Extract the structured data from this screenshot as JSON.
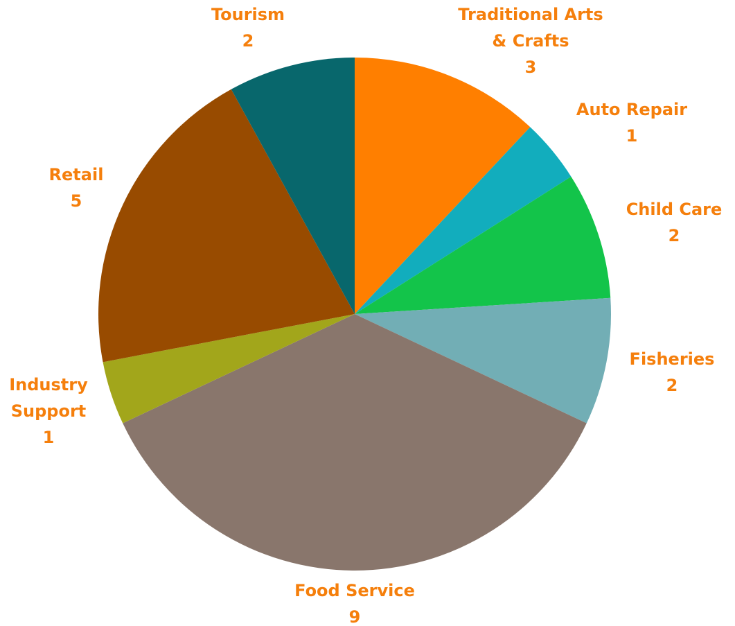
{
  "chart_data": {
    "type": "pie",
    "categories": [
      "Traditional Arts & Crafts",
      "Auto Repair",
      "Child Care",
      "Fisheries",
      "Food Service",
      "Industry Support",
      "Retail",
      "Tourism"
    ],
    "values": [
      3,
      1,
      2,
      2,
      9,
      1,
      5,
      2
    ],
    "colors": [
      "#ff7f00",
      "#12adbd",
      "#13c44a",
      "#72aeb5",
      "#89766c",
      "#a2a61b",
      "#984b00",
      "#08676c"
    ],
    "label_color": "#f57f0c"
  }
}
